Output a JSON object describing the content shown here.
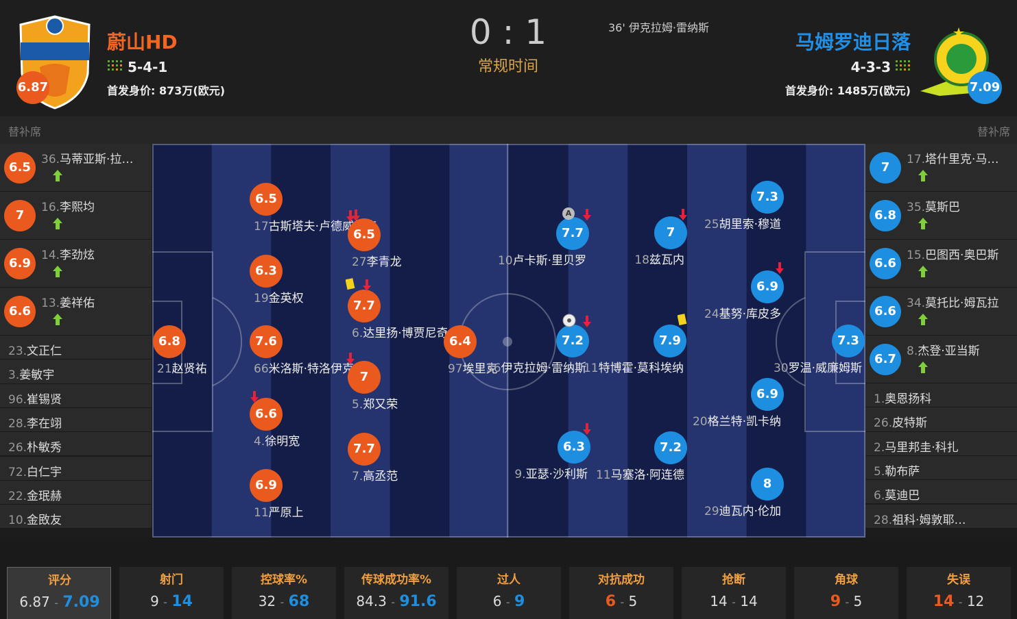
{
  "home": {
    "name": "蔚山HD",
    "formation": "5-4-1",
    "value_label": "首发身价:",
    "value": "873万(欧元)",
    "rating": 6.87
  },
  "away": {
    "name": "马姆罗迪日落",
    "formation": "4-3-3",
    "value_label": "首发身价:",
    "value": "1485万(欧元)",
    "rating": 7.09
  },
  "score": {
    "home": 0,
    "separator": ":",
    "away": 1
  },
  "status": "常规时间",
  "goal_event": {
    "minute": "36'",
    "player": "伊克拉姆·雷纳斯"
  },
  "bench": {
    "title": "替补席",
    "home": [
      {
        "number": "36.",
        "name": "马蒂亚斯·拉…",
        "rating": 6.5
      },
      {
        "number": "16.",
        "name": "李熙均",
        "rating": 7
      },
      {
        "number": "14.",
        "name": "李劲炫",
        "rating": 6.9
      },
      {
        "number": "13.",
        "name": "姜祥佑",
        "rating": 6.6
      },
      {
        "number": "23.",
        "name": "文正仁"
      },
      {
        "number": "3.",
        "name": "姜敏宇"
      },
      {
        "number": "96.",
        "name": "崔锡贤"
      },
      {
        "number": "28.",
        "name": "李在翊"
      },
      {
        "number": "26.",
        "name": "朴敏秀"
      },
      {
        "number": "72.",
        "name": "白仁宇"
      },
      {
        "number": "22.",
        "name": "金珉赫"
      },
      {
        "number": "10.",
        "name": "金敃友"
      }
    ],
    "away": [
      {
        "number": "17.",
        "name": "塔什里克·马…",
        "rating": 7
      },
      {
        "number": "35.",
        "name": "莫斯巴",
        "rating": 6.8
      },
      {
        "number": "15.",
        "name": "巴图西·奥巴斯",
        "rating": 6.6
      },
      {
        "number": "34.",
        "name": "莫托比·姆瓦拉",
        "rating": 6.6
      },
      {
        "number": "8.",
        "name": "杰登·亚当斯",
        "rating": 6.7
      },
      {
        "number": "1.",
        "name": "奥恩扬科"
      },
      {
        "number": "26.",
        "name": "皮特斯"
      },
      {
        "number": "2.",
        "name": "马里邦圭·科扎"
      },
      {
        "number": "5.",
        "name": "勒布萨"
      },
      {
        "number": "6.",
        "name": "莫迪巴"
      },
      {
        "number": "28.",
        "name": "祖科·姆敦耶…"
      }
    ]
  },
  "lineup": {
    "home": [
      {
        "number": "17",
        "name": "古斯塔夫·卢德威格森",
        "rating": 6.5
      },
      {
        "number": "19",
        "name": "金英权",
        "rating": 6.3
      },
      {
        "number": "66",
        "name": "米洛斯·特洛伊克",
        "rating": 7.6
      },
      {
        "number": "4.",
        "name": "徐明宽",
        "rating": 6.6
      },
      {
        "number": "11",
        "name": "严原上",
        "rating": 6.9
      },
      {
        "number": "27",
        "name": "李青龙",
        "rating": 6.5
      },
      {
        "number": "6.",
        "name": "达里扬·博贾尼奇",
        "rating": 7.7
      },
      {
        "number": "5.",
        "name": "郑又荣",
        "rating": 7
      },
      {
        "number": "7.",
        "name": "高丞范",
        "rating": 7.7
      },
      {
        "number": "21",
        "name": "赵贤祐",
        "rating": 6.8
      },
      {
        "number": "97",
        "name": "埃里克",
        "rating": 6.4
      }
    ],
    "away": [
      {
        "number": "10",
        "name": "卢卡斯·里贝罗",
        "rating": 7.7,
        "captain_mark": "A"
      },
      {
        "number": "18",
        "name": "兹瓦内",
        "rating": 7
      },
      {
        "number": "25",
        "name": "胡里索·穆道",
        "rating": 7.3
      },
      {
        "number": "24",
        "name": "基努·库皮多",
        "rating": 6.9
      },
      {
        "number": "36",
        "name": "伊克拉姆·雷纳斯",
        "rating": 7.2
      },
      {
        "number": "11",
        "name": "特博霍·莫科埃纳",
        "rating": 7.9
      },
      {
        "number": "30",
        "name": "罗温·威廉姆斯",
        "rating": 7.3
      },
      {
        "number": "20",
        "name": "格兰特·凯卡纳",
        "rating": 6.9
      },
      {
        "number": "9.",
        "name": "亚瑟·沙利斯",
        "rating": 6.3
      },
      {
        "number": "11",
        "name": "马塞洛·阿连德",
        "rating": 7.2
      },
      {
        "number": "29",
        "name": "迪瓦内·伦加",
        "rating": 8
      }
    ]
  },
  "stat_separator": "-",
  "stats": [
    {
      "label": "评分",
      "home": 6.87,
      "away": 7.09,
      "highlight": "away"
    },
    {
      "label": "射门",
      "home": 9,
      "away": 14,
      "highlight": "away"
    },
    {
      "label": "控球率%",
      "home": 32,
      "away": 68,
      "highlight": "away"
    },
    {
      "label": "传球成功率%",
      "home": 84.3,
      "away": 91.6,
      "highlight": "away"
    },
    {
      "label": "过人",
      "home": 6,
      "away": 9,
      "highlight": "away"
    },
    {
      "label": "对抗成功",
      "home": 6,
      "away": 5,
      "highlight": "home"
    },
    {
      "label": "抢断",
      "home": 14,
      "away": 14
    },
    {
      "label": "角球",
      "home": 9,
      "away": 5,
      "highlight": "home"
    },
    {
      "label": "失误",
      "home": 14,
      "away": 12,
      "highlight": "home"
    }
  ]
}
